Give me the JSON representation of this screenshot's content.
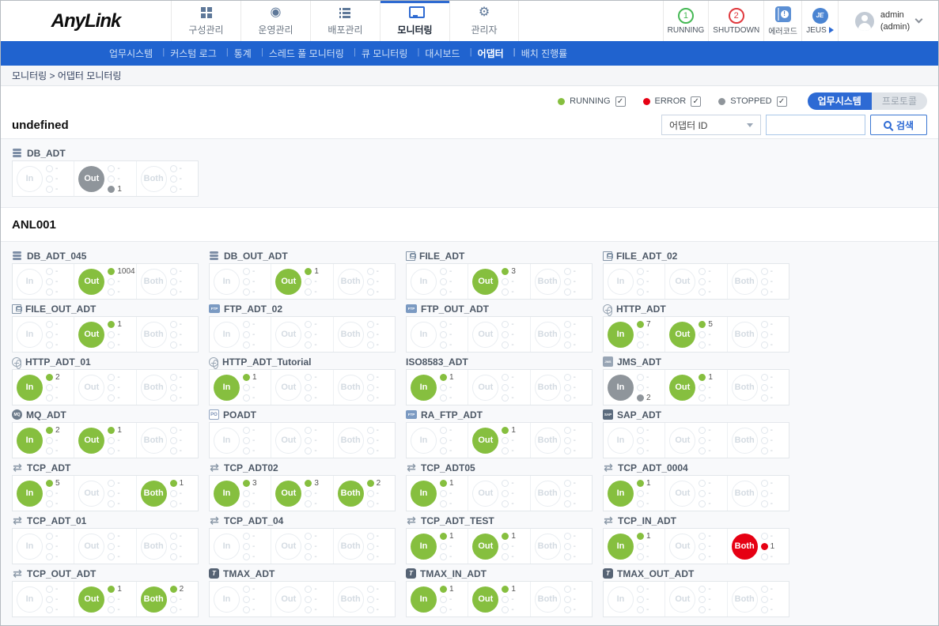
{
  "header": {
    "logo": "AnyLink",
    "tabs": [
      {
        "id": "config",
        "label": "구성관리",
        "icon": "grid",
        "active": false
      },
      {
        "id": "operation",
        "label": "운영관리",
        "icon": "ops",
        "active": false
      },
      {
        "id": "deploy",
        "label": "배포관리",
        "icon": "list",
        "active": false
      },
      {
        "id": "monitoring",
        "label": "모니터링",
        "icon": "monitor",
        "active": true
      },
      {
        "id": "admin",
        "label": "관리자",
        "icon": "gear",
        "active": false
      }
    ],
    "statuses": [
      {
        "id": "running",
        "label": "RUNNING",
        "count": "1",
        "color": "#45b854"
      },
      {
        "id": "shutdown",
        "label": "SHUTDOWN",
        "count": "2",
        "color": "#e0393e"
      },
      {
        "id": "errorcode",
        "label": "에러코드"
      },
      {
        "id": "jeus",
        "label": "JEUS",
        "badge": "JE"
      }
    ],
    "user": {
      "name": "admin",
      "sub": "(admin)"
    }
  },
  "menubar": {
    "items": [
      "업무시스템",
      "커스텀 로그",
      "통계",
      "스레드 풀 모니터링",
      "큐 모니터링",
      "대시보드",
      "어댑터",
      "배치 진행률"
    ],
    "active": "어댑터"
  },
  "breadcrumb": {
    "path": "모니터링 > 어댑터 모니터링"
  },
  "filters": {
    "legend": [
      {
        "label": "RUNNING",
        "color": "#86bf3f",
        "checked": true
      },
      {
        "label": "ERROR",
        "color": "#e60013",
        "checked": true
      },
      {
        "label": "STOPPED",
        "color": "#8f959b",
        "checked": true
      }
    ],
    "view_buttons": [
      {
        "label": "업무시스템",
        "active": true
      },
      {
        "label": "프로토콜",
        "active": false
      }
    ]
  },
  "search": {
    "dropdown_value": "어댑터 ID",
    "input_value": "",
    "button_label": "검색"
  },
  "port_labels": {
    "in": "In",
    "out": "Out",
    "both": "Both"
  },
  "placeholder": "-",
  "state_colors": {
    "running": "#86bf3f",
    "error": "#e60013",
    "stopped": "#8f959b"
  },
  "groups": [
    {
      "name": "undefined",
      "adapters": [
        {
          "name": "DB_ADT",
          "icon": "db",
          "out": {
            "state": "stopped",
            "counts": [
              null,
              null,
              1
            ]
          }
        }
      ]
    },
    {
      "name": "ANL001",
      "adapters": [
        {
          "name": "DB_ADT_045",
          "icon": "db",
          "out": {
            "state": "running",
            "counts": [
              1004,
              null,
              null
            ]
          }
        },
        {
          "name": "DB_OUT_ADT",
          "icon": "db",
          "out": {
            "state": "running",
            "counts": [
              1,
              null,
              null
            ]
          }
        },
        {
          "name": "FILE_ADT",
          "icon": "file",
          "out": {
            "state": "running",
            "counts": [
              3,
              null,
              null
            ]
          }
        },
        {
          "name": "FILE_ADT_02",
          "icon": "file"
        },
        {
          "name": "FILE_OUT_ADT",
          "icon": "file",
          "out": {
            "state": "running",
            "counts": [
              1,
              null,
              null
            ]
          }
        },
        {
          "name": "FTP_ADT_02",
          "icon": "ftp"
        },
        {
          "name": "FTP_OUT_ADT",
          "icon": "ftp"
        },
        {
          "name": "HTTP_ADT",
          "icon": "http",
          "in": {
            "state": "running",
            "counts": [
              7,
              null,
              null
            ]
          },
          "out": {
            "state": "running",
            "counts": [
              5,
              null,
              null
            ]
          }
        },
        {
          "name": "HTTP_ADT_01",
          "icon": "http",
          "in": {
            "state": "running",
            "counts": [
              2,
              null,
              null
            ]
          }
        },
        {
          "name": "HTTP_ADT_Tutorial",
          "icon": "http",
          "in": {
            "state": "running",
            "counts": [
              1,
              null,
              null
            ]
          }
        },
        {
          "name": "ISO8583_ADT",
          "icon": "none",
          "in": {
            "state": "running",
            "counts": [
              1,
              null,
              null
            ]
          }
        },
        {
          "name": "JMS_ADT",
          "icon": "jms",
          "in": {
            "state": "stopped",
            "counts": [
              null,
              null,
              2
            ]
          },
          "out": {
            "state": "running",
            "counts": [
              1,
              null,
              null
            ]
          }
        },
        {
          "name": "MQ_ADT",
          "icon": "mq",
          "in": {
            "state": "running",
            "counts": [
              2,
              null,
              null
            ]
          },
          "out": {
            "state": "running",
            "counts": [
              1,
              null,
              null
            ]
          }
        },
        {
          "name": "POADT",
          "icon": "po"
        },
        {
          "name": "RA_FTP_ADT",
          "icon": "ftp",
          "out": {
            "state": "running",
            "counts": [
              1,
              null,
              null
            ]
          }
        },
        {
          "name": "SAP_ADT",
          "icon": "sap"
        },
        {
          "name": "TCP_ADT",
          "icon": "tcp",
          "in": {
            "state": "running",
            "counts": [
              5,
              null,
              null
            ]
          },
          "both": {
            "state": "running",
            "counts": [
              1,
              null,
              null
            ]
          }
        },
        {
          "name": "TCP_ADT02",
          "icon": "tcp",
          "in": {
            "state": "running",
            "counts": [
              3,
              null,
              null
            ]
          },
          "out": {
            "state": "running",
            "counts": [
              3,
              null,
              null
            ]
          },
          "both": {
            "state": "running",
            "counts": [
              2,
              null,
              null
            ]
          }
        },
        {
          "name": "TCP_ADT05",
          "icon": "tcp",
          "in": {
            "state": "running",
            "counts": [
              1,
              null,
              null
            ]
          }
        },
        {
          "name": "TCP_ADT_0004",
          "icon": "tcp",
          "in": {
            "state": "running",
            "counts": [
              1,
              null,
              null
            ]
          }
        },
        {
          "name": "TCP_ADT_01",
          "icon": "tcp"
        },
        {
          "name": "TCP_ADT_04",
          "icon": "tcp"
        },
        {
          "name": "TCP_ADT_TEST",
          "icon": "tcp",
          "in": {
            "state": "running",
            "counts": [
              1,
              null,
              null
            ]
          },
          "out": {
            "state": "running",
            "counts": [
              1,
              null,
              null
            ]
          }
        },
        {
          "name": "TCP_IN_ADT",
          "icon": "tcp",
          "in": {
            "state": "running",
            "counts": [
              1,
              null,
              null
            ]
          },
          "both": {
            "state": "error",
            "counts": [
              null,
              1,
              null
            ]
          }
        },
        {
          "name": "TCP_OUT_ADT",
          "icon": "tcp",
          "out": {
            "state": "running",
            "counts": [
              1,
              null,
              null
            ]
          },
          "both": {
            "state": "running",
            "counts": [
              2,
              null,
              null
            ]
          }
        },
        {
          "name": "TMAX_ADT",
          "icon": "tmax"
        },
        {
          "name": "TMAX_IN_ADT",
          "icon": "tmax",
          "in": {
            "state": "running",
            "counts": [
              1,
              null,
              null
            ]
          },
          "out": {
            "state": "running",
            "counts": [
              1,
              null,
              null
            ]
          }
        },
        {
          "name": "TMAX_OUT_ADT",
          "icon": "tmax"
        }
      ]
    }
  ]
}
